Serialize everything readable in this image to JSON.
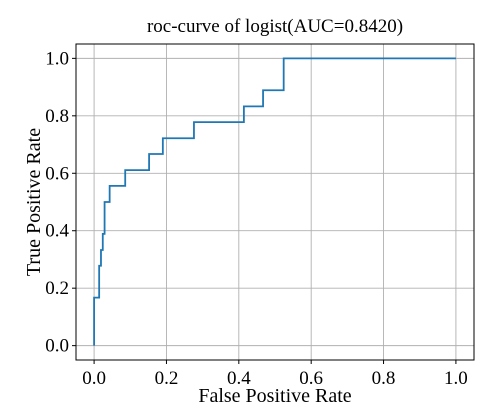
{
  "chart_data": {
    "type": "line",
    "title": "roc-curve of logist(AUC=0.8420)",
    "xlabel": "False Positive Rate",
    "ylabel": "True Positive Rate",
    "xlim": [
      -0.05,
      1.05
    ],
    "ylim": [
      -0.05,
      1.05
    ],
    "xticks": [
      0.0,
      0.2,
      0.4,
      0.6,
      0.8,
      1.0
    ],
    "yticks": [
      0.0,
      0.2,
      0.4,
      0.6,
      0.8,
      1.0
    ],
    "xtick_labels": [
      "0.0",
      "0.2",
      "0.4",
      "0.6",
      "0.8",
      "1.0"
    ],
    "ytick_labels": [
      "0.0",
      "0.2",
      "0.4",
      "0.6",
      "0.8",
      "1.0"
    ],
    "grid": true,
    "legend": false,
    "series": [
      {
        "color": "#1f77b4",
        "x": [
          0.0,
          0.0,
          0.0,
          0.014,
          0.014,
          0.019,
          0.019,
          0.024,
          0.024,
          0.029,
          0.029,
          0.043,
          0.043,
          0.086,
          0.086,
          0.152,
          0.152,
          0.19,
          0.19,
          0.276,
          0.276,
          0.414,
          0.414,
          0.467,
          0.467,
          0.524,
          0.524,
          1.0
        ],
        "y": [
          0.0,
          0.0,
          0.167,
          0.167,
          0.278,
          0.278,
          0.333,
          0.333,
          0.389,
          0.389,
          0.5,
          0.5,
          0.556,
          0.556,
          0.611,
          0.611,
          0.667,
          0.667,
          0.722,
          0.722,
          0.778,
          0.778,
          0.833,
          0.833,
          0.889,
          0.889,
          1.0,
          1.0
        ]
      }
    ]
  }
}
